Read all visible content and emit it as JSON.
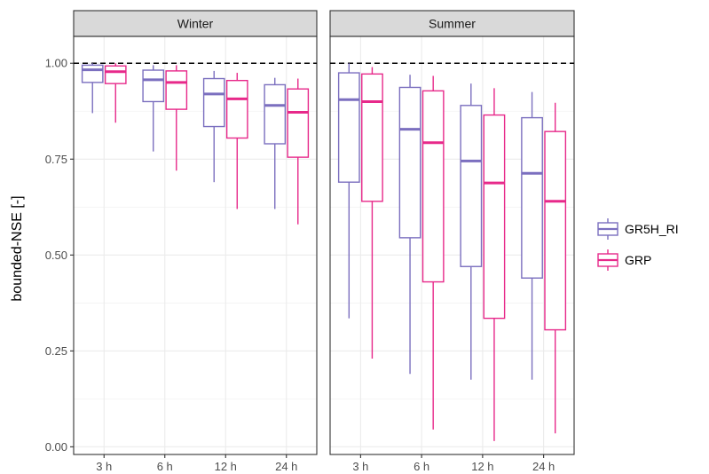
{
  "chart_data": {
    "type": "boxplot",
    "ylabel": "bounded-NSE [-]",
    "xlabel": "",
    "ylim": [
      -0.02,
      1.07
    ],
    "y_ticks": [
      {
        "value": 0.0,
        "label": "0.00"
      },
      {
        "value": 0.25,
        "label": "0.25"
      },
      {
        "value": 0.5,
        "label": "0.50"
      },
      {
        "value": 0.75,
        "label": "0.75"
      },
      {
        "value": 1.0,
        "label": "1.00"
      }
    ],
    "reference_line": 1.0,
    "categories": [
      "3 h",
      "6 h",
      "12 h",
      "24 h"
    ],
    "grid": true,
    "legend_position": "right",
    "series": [
      {
        "name": "GR5H_RI",
        "color": "#7B6FBF"
      },
      {
        "name": "GRP",
        "color": "#E7298A"
      }
    ],
    "panels": [
      {
        "title": "Winter",
        "boxes": {
          "GR5H_RI": [
            {
              "min": 0.87,
              "q1": 0.95,
              "median": 0.983,
              "q3": 0.995,
              "max": 1.0
            },
            {
              "min": 0.77,
              "q1": 0.9,
              "median": 0.957,
              "q3": 0.982,
              "max": 0.995
            },
            {
              "min": 0.69,
              "q1": 0.835,
              "median": 0.92,
              "q3": 0.96,
              "max": 0.98
            },
            {
              "min": 0.62,
              "q1": 0.79,
              "median": 0.89,
              "q3": 0.944,
              "max": 0.962
            }
          ],
          "GRP": [
            {
              "min": 0.845,
              "q1": 0.947,
              "median": 0.978,
              "q3": 0.993,
              "max": 1.0
            },
            {
              "min": 0.72,
              "q1": 0.88,
              "median": 0.95,
              "q3": 0.98,
              "max": 0.995
            },
            {
              "min": 0.62,
              "q1": 0.805,
              "median": 0.907,
              "q3": 0.955,
              "max": 0.975
            },
            {
              "min": 0.58,
              "q1": 0.755,
              "median": 0.872,
              "q3": 0.933,
              "max": 0.96
            }
          ]
        }
      },
      {
        "title": "Summer",
        "boxes": {
          "GR5H_RI": [
            {
              "min": 0.335,
              "q1": 0.69,
              "median": 0.905,
              "q3": 0.975,
              "max": 1.0
            },
            {
              "min": 0.19,
              "q1": 0.545,
              "median": 0.828,
              "q3": 0.937,
              "max": 0.97
            },
            {
              "min": 0.175,
              "q1": 0.47,
              "median": 0.745,
              "q3": 0.89,
              "max": 0.947
            },
            {
              "min": 0.175,
              "q1": 0.44,
              "median": 0.713,
              "q3": 0.858,
              "max": 0.925
            }
          ],
          "GRP": [
            {
              "min": 0.23,
              "q1": 0.64,
              "median": 0.9,
              "q3": 0.972,
              "max": 0.99
            },
            {
              "min": 0.045,
              "q1": 0.43,
              "median": 0.793,
              "q3": 0.928,
              "max": 0.967
            },
            {
              "min": 0.015,
              "q1": 0.335,
              "median": 0.688,
              "q3": 0.865,
              "max": 0.935
            },
            {
              "min": 0.035,
              "q1": 0.305,
              "median": 0.64,
              "q3": 0.822,
              "max": 0.897
            }
          ]
        }
      }
    ]
  }
}
